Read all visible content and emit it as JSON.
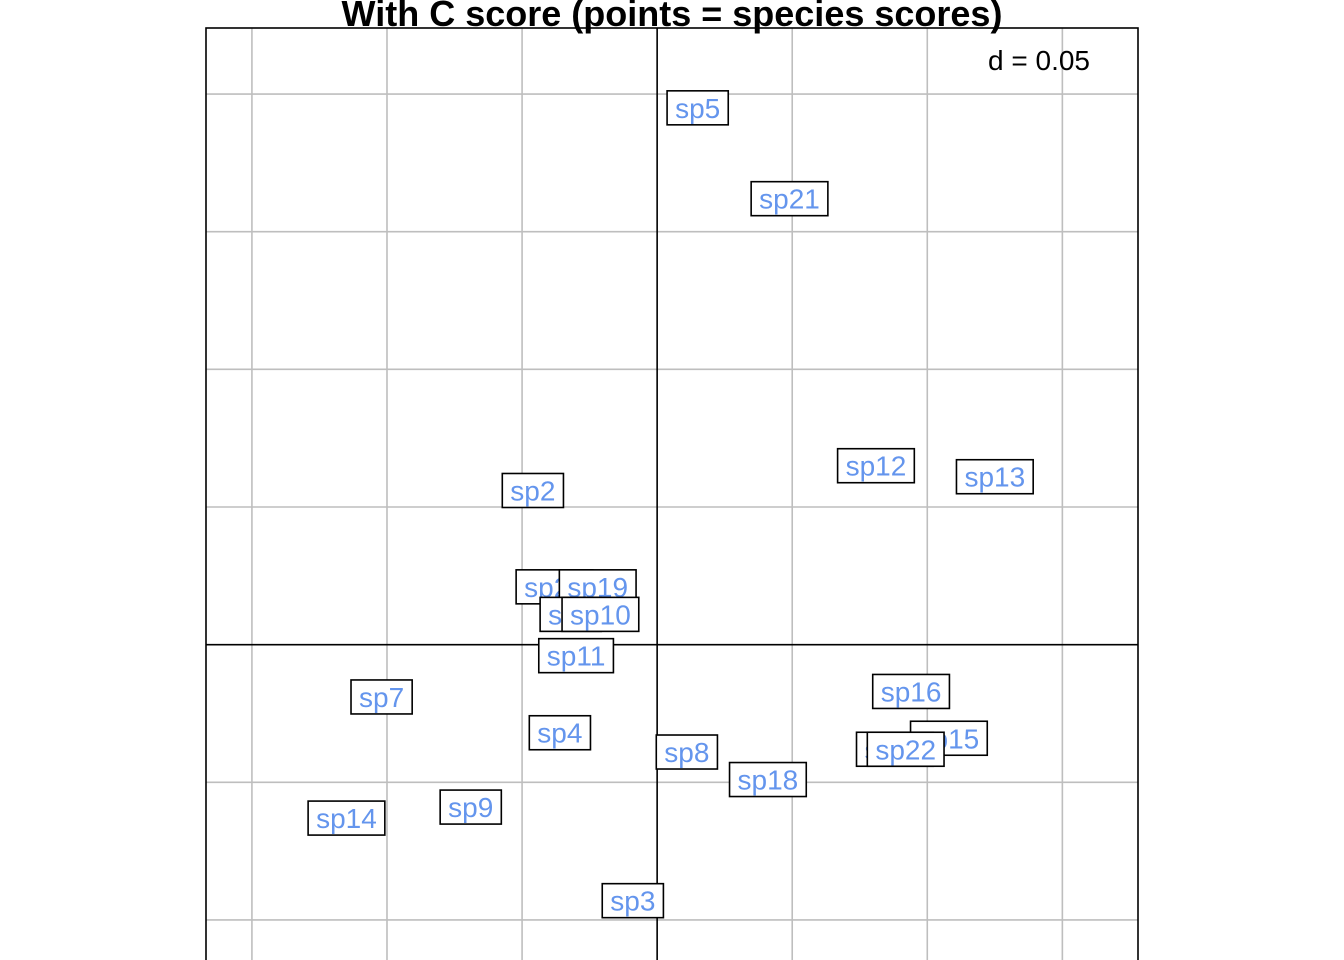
{
  "chart_data": {
    "type": "scatter",
    "title": "With C score (points = species scores)",
    "annotation": "d = 0.05",
    "grid": true,
    "grid_step": 0.05,
    "axes_through_origin": true,
    "xlim": [
      -0.167,
      0.178
    ],
    "ylim": [
      -0.12,
      0.224
    ],
    "label_style": "boxed",
    "colors": {
      "label_text": "#6495ed",
      "grid": "#bebebe",
      "axis": "#000000",
      "box": "#000000"
    },
    "points": [
      {
        "label": "sp5",
        "x": 0.015,
        "y": 0.195
      },
      {
        "label": "sp21",
        "x": 0.049,
        "y": 0.162
      },
      {
        "label": "sp12",
        "x": 0.081,
        "y": 0.065
      },
      {
        "label": "sp13",
        "x": 0.125,
        "y": 0.061
      },
      {
        "label": "sp2",
        "x": -0.046,
        "y": 0.056
      },
      {
        "label": "sp20",
        "x": -0.038,
        "y": 0.021
      },
      {
        "label": "sp19",
        "x": -0.022,
        "y": 0.021
      },
      {
        "label": "sp6",
        "x": -0.032,
        "y": 0.011
      },
      {
        "label": "sp10",
        "x": -0.021,
        "y": 0.011
      },
      {
        "label": "sp11",
        "x": -0.03,
        "y": -0.004
      },
      {
        "label": "sp7",
        "x": -0.102,
        "y": -0.019
      },
      {
        "label": "sp16",
        "x": 0.094,
        "y": -0.017
      },
      {
        "label": "sp4",
        "x": -0.036,
        "y": -0.032
      },
      {
        "label": "sp15",
        "x": 0.108,
        "y": -0.034
      },
      {
        "label": "sp17",
        "x": 0.088,
        "y": -0.038
      },
      {
        "label": "sp22",
        "x": 0.092,
        "y": -0.038
      },
      {
        "label": "sp8",
        "x": 0.011,
        "y": -0.039
      },
      {
        "label": "sp18",
        "x": 0.041,
        "y": -0.049
      },
      {
        "label": "sp9",
        "x": -0.069,
        "y": -0.059
      },
      {
        "label": "sp14",
        "x": -0.115,
        "y": -0.063
      },
      {
        "label": "sp3",
        "x": -0.009,
        "y": -0.093
      }
    ]
  }
}
